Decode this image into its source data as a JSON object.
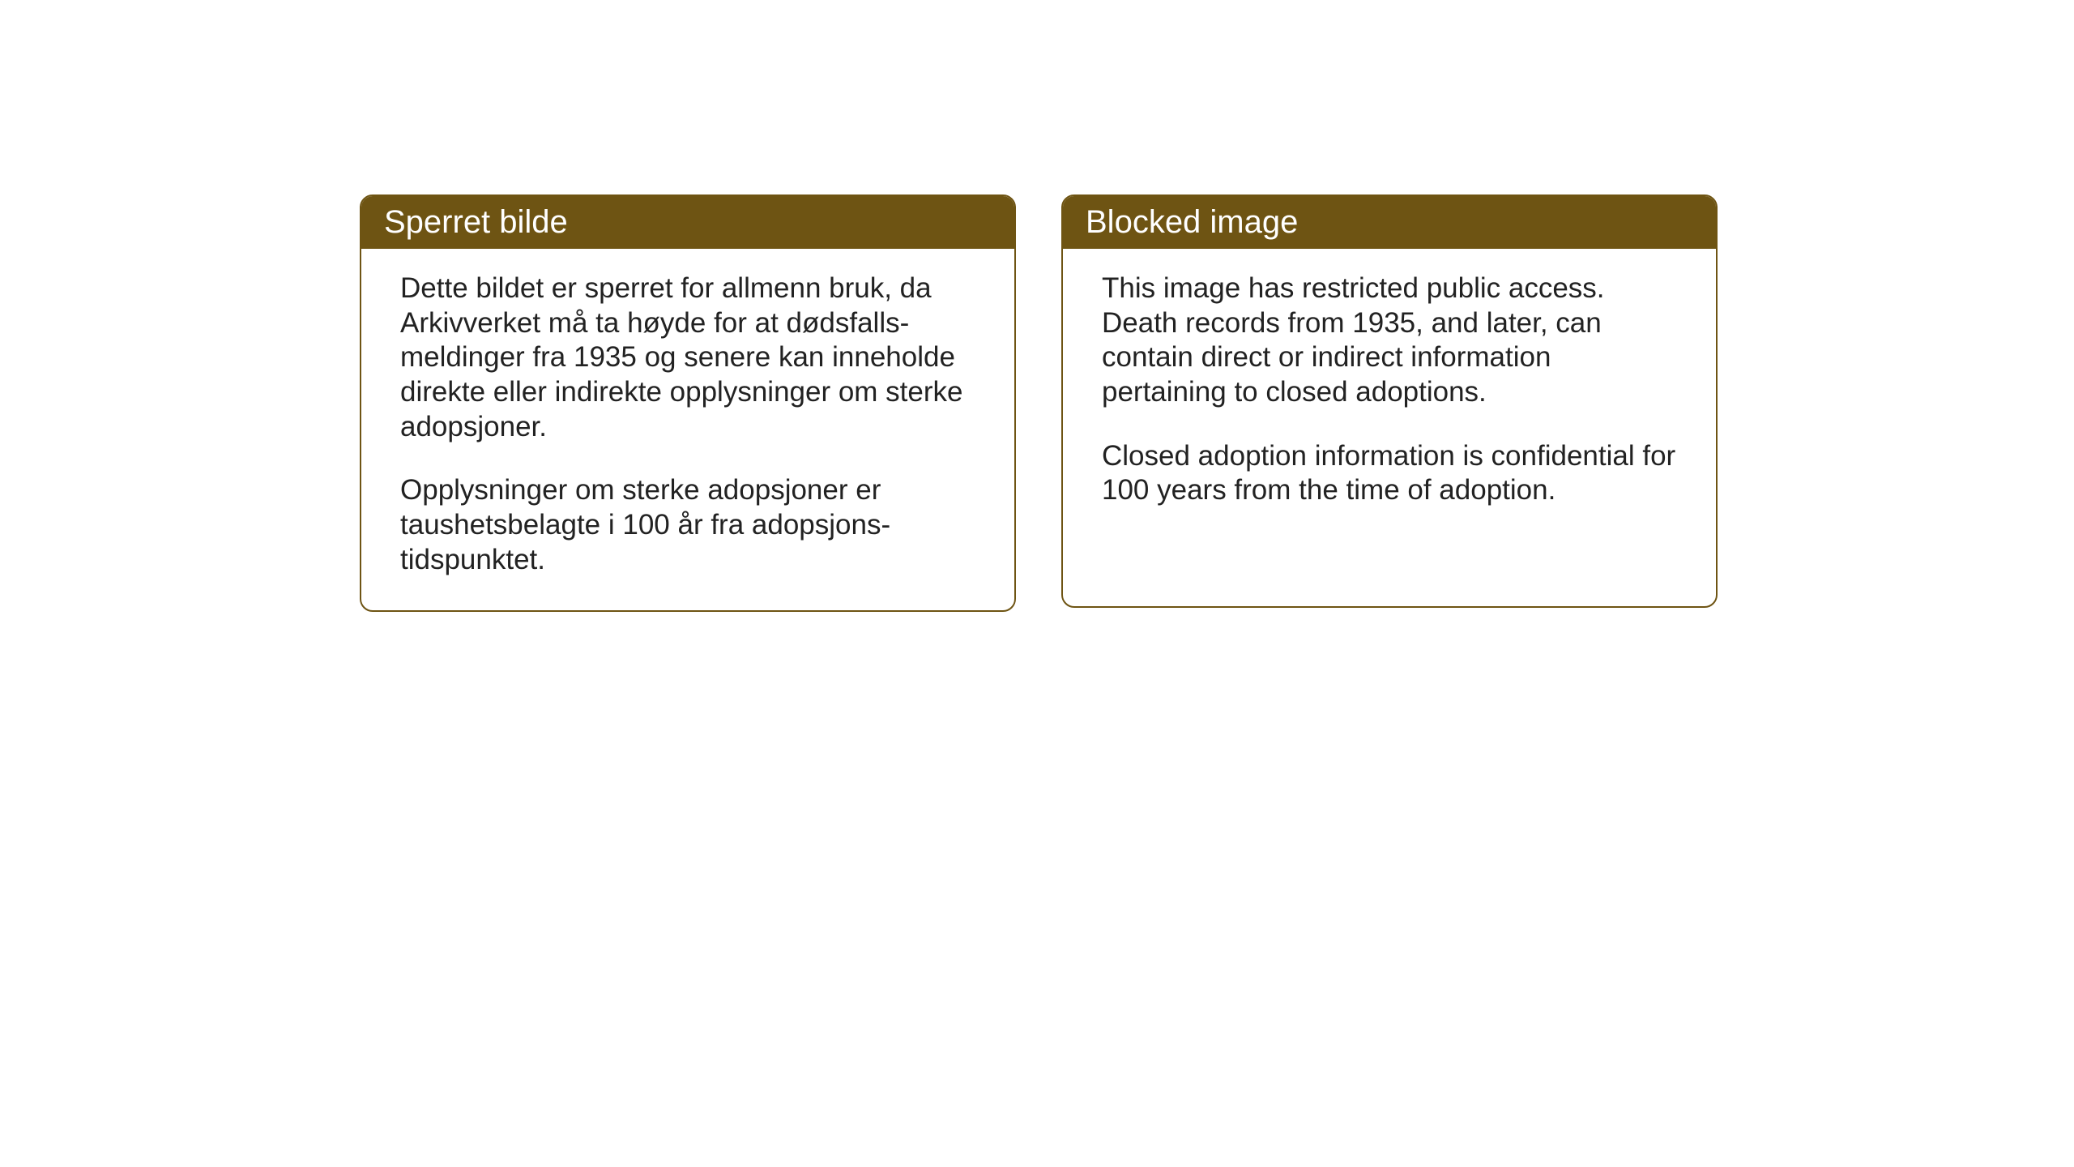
{
  "layout": {
    "background_color": "#ffffff",
    "card_border_color": "#6e5413",
    "card_header_bg": "#6e5413",
    "card_header_text_color": "#ffffff",
    "body_text_color": "#222222",
    "header_fontsize": 40,
    "body_fontsize": 35,
    "border_radius": 16,
    "gap": 56
  },
  "cards": [
    {
      "title": "Sperret bilde",
      "paragraphs": [
        "Dette bildet er sperret for allmenn bruk, da Arkivverket må ta høyde for at dødsfalls-meldinger fra 1935 og senere kan inneholde direkte eller indirekte opplysninger om sterke adopsjoner.",
        "Opplysninger om sterke adopsjoner er taushetsbelagte i 100 år fra adopsjons-tidspunktet."
      ]
    },
    {
      "title": "Blocked image",
      "paragraphs": [
        "This image has restricted public access. Death records from 1935, and later, can contain direct or indirect information pertaining to closed adoptions.",
        "Closed adoption information is confidential for 100 years from the time of adoption."
      ]
    }
  ]
}
